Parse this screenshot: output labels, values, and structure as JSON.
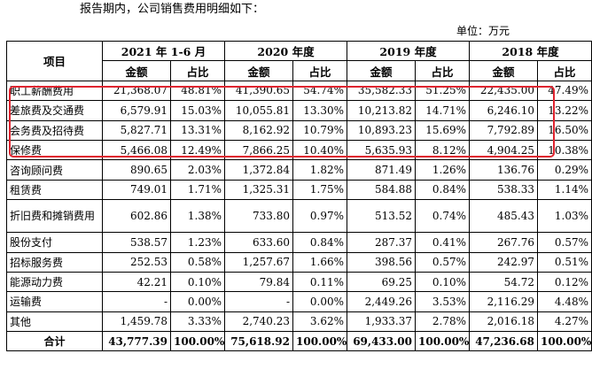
{
  "intro_text": "报告期内，公司销售费用明细如下：",
  "unit_label": "单位：万元",
  "header": {
    "item_label": "项目",
    "periods": [
      "2021 年 1-6 月",
      "2020 年度",
      "2019 年度",
      "2018 年度"
    ],
    "amount_label": "金额",
    "share_label": "占比"
  },
  "rows": [
    {
      "name": "职工薪酬费用",
      "values": [
        "21,368.07",
        "48.81%",
        "41,390.65",
        "54.74%",
        "35,582.33",
        "51.25%",
        "22,435.00",
        "47.49%"
      ]
    },
    {
      "name": "差旅费及交通费",
      "values": [
        "6,579.91",
        "15.03%",
        "10,055.81",
        "13.30%",
        "10,213.82",
        "14.71%",
        "6,246.10",
        "13.22%"
      ]
    },
    {
      "name": "会务费及招待费",
      "values": [
        "5,827.71",
        "13.31%",
        "8,162.92",
        "10.79%",
        "10,893.23",
        "15.69%",
        "7,792.89",
        "16.50%"
      ]
    },
    {
      "name": "保修费",
      "values": [
        "5,466.08",
        "12.49%",
        "7,866.25",
        "10.40%",
        "5,635.93",
        "8.12%",
        "4,904.25",
        "10.38%"
      ]
    },
    {
      "name": "咨询顾问费",
      "values": [
        "890.65",
        "2.03%",
        "1,372.84",
        "1.82%",
        "871.49",
        "1.26%",
        "136.76",
        "0.29%"
      ]
    },
    {
      "name": "租赁费",
      "values": [
        "749.01",
        "1.71%",
        "1,325.31",
        "1.75%",
        "584.88",
        "0.84%",
        "538.33",
        "1.14%"
      ]
    },
    {
      "name": "折旧费和摊销费用",
      "values": [
        "602.86",
        "1.38%",
        "733.80",
        "0.97%",
        "513.52",
        "0.74%",
        "485.43",
        "1.03%"
      ]
    },
    {
      "name": "股份支付",
      "values": [
        "538.57",
        "1.23%",
        "633.60",
        "0.84%",
        "287.37",
        "0.41%",
        "267.76",
        "0.57%"
      ]
    },
    {
      "name": "招标服务费",
      "values": [
        "252.53",
        "0.58%",
        "1,257.67",
        "1.66%",
        "398.56",
        "0.57%",
        "242.97",
        "0.51%"
      ]
    },
    {
      "name": "能源动力费",
      "values": [
        "42.21",
        "0.10%",
        "79.84",
        "0.11%",
        "69.25",
        "0.10%",
        "54.72",
        "0.12%"
      ]
    },
    {
      "name": "运输费",
      "values": [
        "-",
        "0.00%",
        "-",
        "0.00%",
        "2,449.26",
        "3.53%",
        "2,116.29",
        "4.48%"
      ]
    },
    {
      "name": "其他",
      "values": [
        "1,459.78",
        "3.33%",
        "2,740.23",
        "3.62%",
        "1,933.37",
        "2.78%",
        "2,016.18",
        "4.27%"
      ]
    }
  ],
  "total": {
    "name": "合计",
    "values": [
      "43,777.39",
      "100.00%",
      "75,618.92",
      "100.00%",
      "69,433.00",
      "100.00%",
      "47,236.68",
      "100.00%"
    ]
  },
  "highlight_color": "#e0242f"
}
